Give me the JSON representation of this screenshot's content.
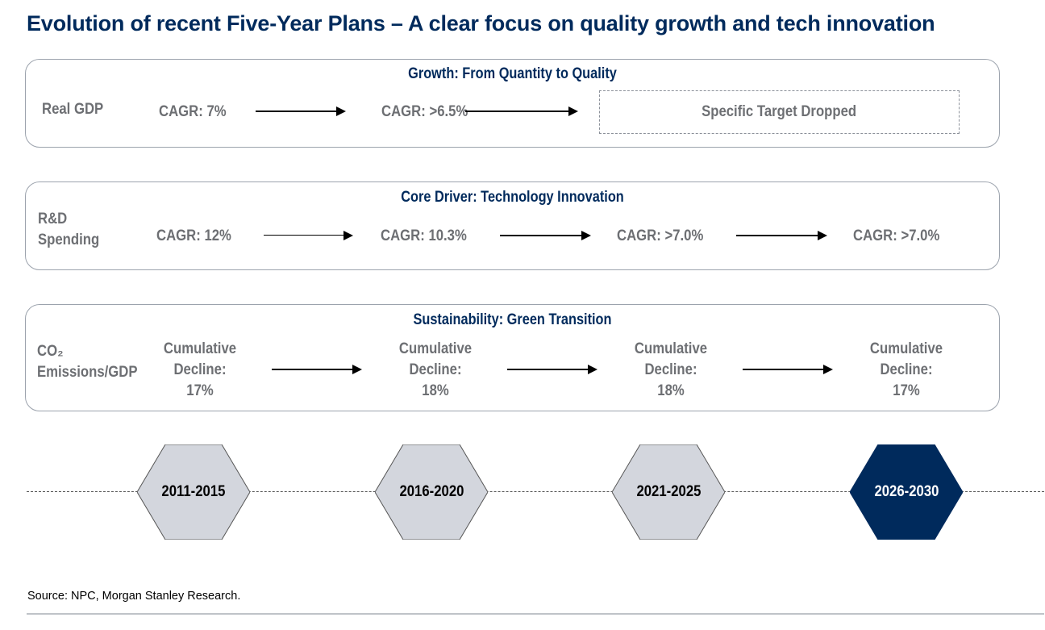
{
  "title": "Evolution of recent Five-Year Plans – A clear focus on quality growth and tech innovation",
  "panels": {
    "growth": {
      "title": "Growth: From Quantity to Quality",
      "label": "Real GDP",
      "values": [
        "CAGR: 7%",
        "CAGR: >6.5%"
      ],
      "dropped": "Specific Target Dropped"
    },
    "rd": {
      "title": "Core Driver: Technology Innovation",
      "label_line1": "R&D",
      "label_line2": "Spending",
      "values": [
        "CAGR: 12%",
        "CAGR: 10.3%",
        "CAGR: >7.0%",
        "CAGR: >7.0%"
      ]
    },
    "co2": {
      "title": "Sustainability: Green Transition",
      "label_line1": "CO₂",
      "label_line2": "Emissions/GDP",
      "values": [
        {
          "l1": "Cumulative",
          "l2": "Decline:",
          "l3": "17%"
        },
        {
          "l1": "Cumulative",
          "l2": "Decline:",
          "l3": "18%"
        },
        {
          "l1": "Cumulative",
          "l2": "Decline:",
          "l3": "18%"
        },
        {
          "l1": "Cumulative",
          "l2": "Decline:",
          "l3": "17%"
        }
      ]
    }
  },
  "timeline": {
    "periods": [
      "2011-2015",
      "2016-2020",
      "2021-2025",
      "2026-2030"
    ],
    "colors": {
      "past_fill": "#D3D6DD",
      "current_fill": "#002A5C",
      "past_text": "#000000",
      "current_text": "#ffffff"
    }
  },
  "source": "Source: NPC, Morgan Stanley Research."
}
